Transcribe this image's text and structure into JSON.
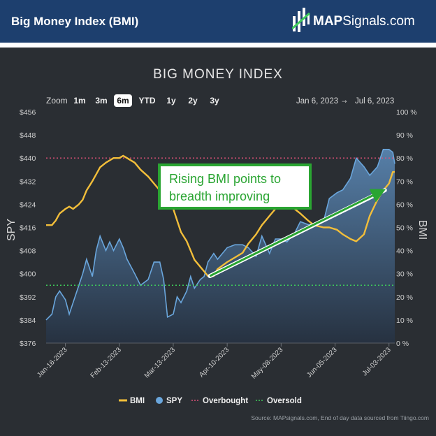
{
  "header": {
    "title": "Big Money Index (BMI)",
    "brand_bold": "MAP",
    "brand_rest": "Signals.com"
  },
  "chart_data": {
    "type": "line",
    "title": "BIG MONEY INDEX",
    "zoom": {
      "label": "Zoom",
      "options": [
        "1m",
        "3m",
        "6m",
        "YTD",
        "1y",
        "2y",
        "3y"
      ],
      "selected": "6m"
    },
    "range_from": "Jan 6, 2023",
    "range_arrow": "→",
    "range_to": "Jul 6, 2023",
    "left_axis": {
      "label": "SPY",
      "ylim": [
        376,
        456
      ],
      "ticks": [
        {
          "v": 376,
          "t": "$376"
        },
        {
          "v": 384,
          "t": "$384"
        },
        {
          "v": 392,
          "t": "$392"
        },
        {
          "v": 400,
          "t": "$400"
        },
        {
          "v": 408,
          "t": "$408"
        },
        {
          "v": 416,
          "t": "$416"
        },
        {
          "v": 424,
          "t": "$424"
        },
        {
          "v": 432,
          "t": "$432"
        },
        {
          "v": 440,
          "t": "$440"
        },
        {
          "v": 448,
          "t": "$448"
        },
        {
          "v": 456,
          "t": "$456"
        }
      ]
    },
    "right_axis": {
      "label": "BMI",
      "ylim": [
        0,
        100
      ],
      "ticks": [
        {
          "v": 0,
          "t": "0 %"
        },
        {
          "v": 10,
          "t": "10 %"
        },
        {
          "v": 20,
          "t": "20 %"
        },
        {
          "v": 30,
          "t": "30 %"
        },
        {
          "v": 40,
          "t": "40 %"
        },
        {
          "v": 50,
          "t": "50 %"
        },
        {
          "v": 60,
          "t": "60 %"
        },
        {
          "v": 70,
          "t": "70 %"
        },
        {
          "v": 80,
          "t": "80 %"
        },
        {
          "v": 90,
          "t": "90 %"
        },
        {
          "v": 100,
          "t": "100 %"
        }
      ]
    },
    "x_range": [
      "2023-01-06",
      "2023-07-06"
    ],
    "x_ticks": [
      "Jan-16-2023",
      "Feb-13-2023",
      "Mar-13-2023",
      "Apr-10-2023",
      "May-08-2023",
      "Jun-05-2023",
      "Jul-03-2023"
    ],
    "x_tick_dates": [
      "2023-01-16",
      "2023-02-13",
      "2023-03-13",
      "2023-04-10",
      "2023-05-08",
      "2023-06-05",
      "2023-07-03"
    ],
    "series": [
      {
        "name": "BMI",
        "axis": "right",
        "color": "#f2be3a",
        "points": [
          [
            "2023-01-06",
            51
          ],
          [
            "2023-01-09",
            51
          ],
          [
            "2023-01-11",
            53
          ],
          [
            "2023-01-13",
            56
          ],
          [
            "2023-01-16",
            58
          ],
          [
            "2023-01-18",
            59
          ],
          [
            "2023-01-20",
            58
          ],
          [
            "2023-01-23",
            60
          ],
          [
            "2023-01-25",
            62
          ],
          [
            "2023-01-27",
            66
          ],
          [
            "2023-01-30",
            70
          ],
          [
            "2023-02-01",
            73
          ],
          [
            "2023-02-03",
            76
          ],
          [
            "2023-02-06",
            78
          ],
          [
            "2023-02-08",
            79
          ],
          [
            "2023-02-10",
            80
          ],
          [
            "2023-02-13",
            80
          ],
          [
            "2023-02-15",
            81
          ],
          [
            "2023-02-17",
            80
          ],
          [
            "2023-02-21",
            78
          ],
          [
            "2023-02-24",
            75
          ],
          [
            "2023-02-28",
            72
          ],
          [
            "2023-03-03",
            69
          ],
          [
            "2023-03-06",
            66
          ],
          [
            "2023-03-08",
            64
          ],
          [
            "2023-03-10",
            62
          ],
          [
            "2023-03-13",
            58
          ],
          [
            "2023-03-15",
            53
          ],
          [
            "2023-03-17",
            48
          ],
          [
            "2023-03-20",
            44
          ],
          [
            "2023-03-22",
            40
          ],
          [
            "2023-03-24",
            36
          ],
          [
            "2023-03-27",
            33
          ],
          [
            "2023-03-29",
            31
          ],
          [
            "2023-03-31",
            29
          ],
          [
            "2023-04-03",
            29
          ],
          [
            "2023-04-05",
            32
          ],
          [
            "2023-04-10",
            35
          ],
          [
            "2023-04-14",
            37
          ],
          [
            "2023-04-18",
            39
          ],
          [
            "2023-04-21",
            43
          ],
          [
            "2023-04-25",
            47
          ],
          [
            "2023-04-28",
            51
          ],
          [
            "2023-05-02",
            55
          ],
          [
            "2023-05-05",
            58
          ],
          [
            "2023-05-08",
            59
          ],
          [
            "2023-05-11",
            60
          ],
          [
            "2023-05-15",
            58
          ],
          [
            "2023-05-18",
            56
          ],
          [
            "2023-05-22",
            53
          ],
          [
            "2023-05-25",
            51
          ],
          [
            "2023-05-30",
            50
          ],
          [
            "2023-06-02",
            50
          ],
          [
            "2023-06-06",
            49
          ],
          [
            "2023-06-09",
            47
          ],
          [
            "2023-06-13",
            45
          ],
          [
            "2023-06-16",
            44
          ],
          [
            "2023-06-20",
            47
          ],
          [
            "2023-06-23",
            55
          ],
          [
            "2023-06-27",
            62
          ],
          [
            "2023-06-30",
            66
          ],
          [
            "2023-07-03",
            69
          ],
          [
            "2023-07-05",
            74
          ],
          [
            "2023-07-06",
            74
          ]
        ]
      },
      {
        "name": "SPY",
        "axis": "left",
        "color": "#6aa6dc",
        "points": [
          [
            "2023-01-06",
            384
          ],
          [
            "2023-01-09",
            386
          ],
          [
            "2023-01-11",
            392
          ],
          [
            "2023-01-13",
            394
          ],
          [
            "2023-01-16",
            391
          ],
          [
            "2023-01-18",
            386
          ],
          [
            "2023-01-20",
            390
          ],
          [
            "2023-01-23",
            396
          ],
          [
            "2023-01-25",
            400
          ],
          [
            "2023-01-27",
            405
          ],
          [
            "2023-01-30",
            399
          ],
          [
            "2023-02-01",
            408
          ],
          [
            "2023-02-03",
            413
          ],
          [
            "2023-02-06",
            408
          ],
          [
            "2023-02-08",
            411
          ],
          [
            "2023-02-10",
            408
          ],
          [
            "2023-02-13",
            412
          ],
          [
            "2023-02-15",
            409
          ],
          [
            "2023-02-17",
            405
          ],
          [
            "2023-02-21",
            400
          ],
          [
            "2023-02-24",
            396
          ],
          [
            "2023-02-28",
            398
          ],
          [
            "2023-03-03",
            404
          ],
          [
            "2023-03-06",
            404
          ],
          [
            "2023-03-08",
            398
          ],
          [
            "2023-03-10",
            385
          ],
          [
            "2023-03-13",
            386
          ],
          [
            "2023-03-15",
            392
          ],
          [
            "2023-03-17",
            390
          ],
          [
            "2023-03-20",
            394
          ],
          [
            "2023-03-22",
            399
          ],
          [
            "2023-03-24",
            395
          ],
          [
            "2023-03-27",
            398
          ],
          [
            "2023-03-29",
            399
          ],
          [
            "2023-03-31",
            404
          ],
          [
            "2023-04-03",
            407
          ],
          [
            "2023-04-05",
            405
          ],
          [
            "2023-04-10",
            409
          ],
          [
            "2023-04-14",
            410
          ],
          [
            "2023-04-18",
            410
          ],
          [
            "2023-04-21",
            409
          ],
          [
            "2023-04-25",
            406
          ],
          [
            "2023-04-28",
            413
          ],
          [
            "2023-05-02",
            407
          ],
          [
            "2023-05-05",
            412
          ],
          [
            "2023-05-08",
            412
          ],
          [
            "2023-05-11",
            411
          ],
          [
            "2023-05-15",
            414
          ],
          [
            "2023-05-18",
            418
          ],
          [
            "2023-05-22",
            417
          ],
          [
            "2023-05-25",
            417
          ],
          [
            "2023-05-30",
            418
          ],
          [
            "2023-06-02",
            426
          ],
          [
            "2023-06-06",
            428
          ],
          [
            "2023-06-09",
            429
          ],
          [
            "2023-06-13",
            433
          ],
          [
            "2023-06-16",
            440
          ],
          [
            "2023-06-20",
            437
          ],
          [
            "2023-06-23",
            434
          ],
          [
            "2023-06-27",
            437
          ],
          [
            "2023-06-30",
            443
          ],
          [
            "2023-07-03",
            443
          ],
          [
            "2023-07-05",
            442
          ],
          [
            "2023-07-06",
            438
          ]
        ]
      }
    ],
    "overbought": {
      "name": "Overbought",
      "value": 80,
      "color": "#e0507a"
    },
    "oversold": {
      "name": "Oversold",
      "value": 25,
      "color": "#3fcb5a"
    },
    "legend": [
      {
        "name": "BMI",
        "color": "#f2be3a",
        "marker": "line"
      },
      {
        "name": "SPY",
        "color": "#6aa6dc",
        "marker": "dot"
      },
      {
        "name": "Overbought",
        "color": "#e0507a",
        "marker": "dotted"
      },
      {
        "name": "Oversold",
        "color": "#3fcb5a",
        "marker": "dotted"
      }
    ],
    "annotation": {
      "text_line1": "Rising BMI points to",
      "text_line2": "breadth improving",
      "arrow_from": [
        "2023-04-01",
        29
      ],
      "arrow_to": [
        "2023-07-03",
        67
      ],
      "color": "#2aa532"
    },
    "grid": false,
    "legend_position": "bottom-center",
    "source": "Source: MAPsignals.com, End of day data sourced from Tiingo.com"
  }
}
